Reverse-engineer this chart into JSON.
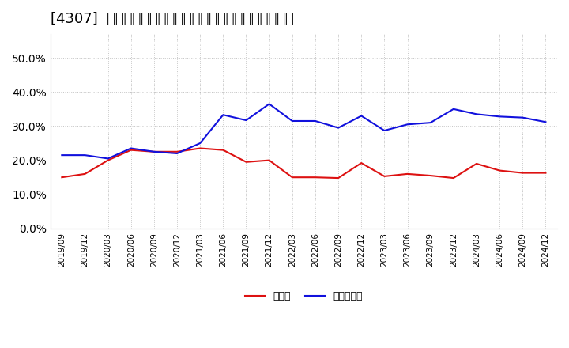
{
  "title": "[4307]  現預金、有利子負債の総資産に対する比率の推移",
  "x_labels": [
    "2019/09",
    "2019/12",
    "2020/03",
    "2020/06",
    "2020/09",
    "2020/12",
    "2021/03",
    "2021/06",
    "2021/09",
    "2021/12",
    "2022/03",
    "2022/06",
    "2022/09",
    "2022/12",
    "2023/03",
    "2023/06",
    "2023/09",
    "2023/12",
    "2024/03",
    "2024/06",
    "2024/09",
    "2024/12"
  ],
  "cash": [
    0.15,
    0.16,
    0.2,
    0.23,
    0.225,
    0.225,
    0.235,
    0.23,
    0.195,
    0.2,
    0.15,
    0.15,
    0.148,
    0.192,
    0.153,
    0.16,
    0.155,
    0.148,
    0.19,
    0.17,
    0.163,
    0.163
  ],
  "interest_bearing_debt": [
    0.215,
    0.215,
    0.205,
    0.235,
    0.225,
    0.22,
    0.25,
    0.333,
    0.317,
    0.365,
    0.315,
    0.315,
    0.295,
    0.33,
    0.287,
    0.305,
    0.31,
    0.35,
    0.335,
    0.328,
    0.325,
    0.312
  ],
  "cash_color": "#dd1111",
  "debt_color": "#1111dd",
  "legend_cash": "現預金",
  "legend_debt": "有利子負債",
  "ylim": [
    0.0,
    0.57
  ],
  "yticks": [
    0.0,
    0.1,
    0.2,
    0.3,
    0.4,
    0.5
  ],
  "background_color": "#ffffff",
  "grid_color": "#aaaaaa",
  "title_fontsize": 13
}
